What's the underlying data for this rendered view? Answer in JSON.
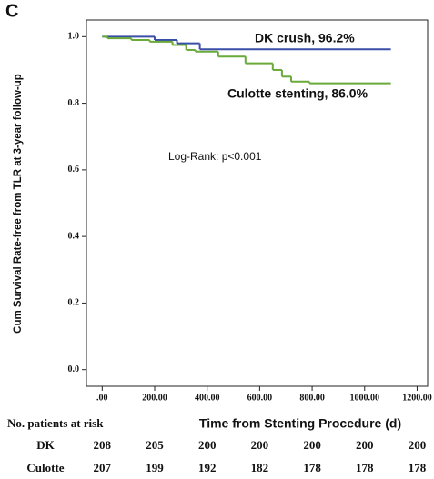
{
  "chart_data": {
    "type": "step",
    "panel_label": "C",
    "x_label": "Time from Stenting Procedure (d)",
    "y_label": "Cum Survival Rate-free from TLR at 3-year follow-up",
    "annotations": [
      "DK crush, 96.2%",
      "Culotte stenting, 86.0%",
      "Log-Rank: p<0.001"
    ],
    "risk_title": "No. patients at risk",
    "xlim": [
      -60,
      1240
    ],
    "ylim": [
      -0.05,
      1.05
    ],
    "xticks": [
      {
        "value": 0,
        "label": ".00"
      },
      {
        "value": 200,
        "label": "200.00"
      },
      {
        "value": 400,
        "label": "400.00"
      },
      {
        "value": 600,
        "label": "600.00"
      },
      {
        "value": 800,
        "label": "800.00"
      },
      {
        "value": 1000,
        "label": "1000.00"
      },
      {
        "value": 1200,
        "label": "1200.00"
      }
    ],
    "yticks": [
      {
        "value": 0,
        "label": "0.0"
      },
      0.2,
      0.4,
      0.6,
      0.8,
      {
        "value": 1,
        "label": "1.0"
      }
    ],
    "series": [
      {
        "name": "DK",
        "color": "#3a4fa8",
        "x": [
          0,
          200,
          285,
          372,
          1100
        ],
        "values": [
          1.0,
          0.99,
          0.98,
          0.962,
          0.962
        ],
        "at_risk": [
          208,
          205,
          200,
          200,
          200,
          200,
          200
        ]
      },
      {
        "name": "Culotte",
        "color": "#6aaa3a",
        "x": [
          0,
          20,
          111,
          181,
          268,
          320,
          355,
          442,
          546,
          650,
          685,
          720,
          790,
          1100
        ],
        "values": [
          1.0,
          0.995,
          0.99,
          0.985,
          0.975,
          0.96,
          0.955,
          0.94,
          0.92,
          0.9,
          0.88,
          0.865,
          0.86,
          0.86
        ],
        "at_risk": [
          207,
          199,
          192,
          182,
          178,
          178,
          178
        ]
      }
    ]
  }
}
